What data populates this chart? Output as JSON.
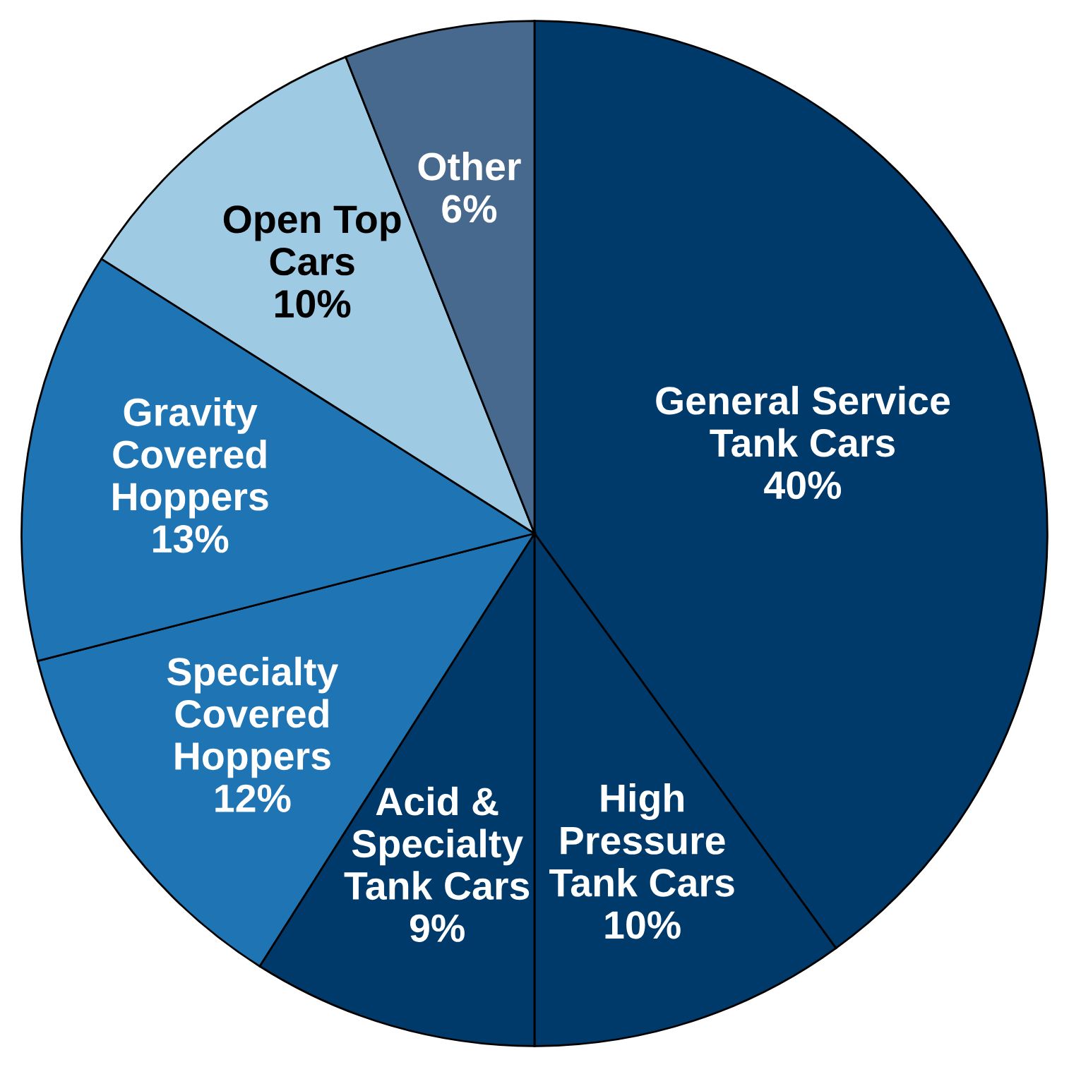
{
  "chart_data": {
    "type": "pie",
    "categories": [
      "General Service\nTank Cars",
      "High\nPressure\nTank Cars",
      "Acid &\nSpecialty\nTank Cars",
      "Specialty\nCovered\nHoppers",
      "Gravity\nCovered\nHoppers",
      "Open Top\nCars",
      "Other"
    ],
    "values": [
      40,
      10,
      9,
      12,
      13,
      10,
      6
    ],
    "colors": [
      "#003a6b",
      "#003a6b",
      "#003a6b",
      "#1f74b3",
      "#1f74b3",
      "#9ecbe3",
      "#46698d"
    ],
    "value_labels": [
      "40%",
      "10%",
      "9%",
      "12%",
      "13%",
      "10%",
      "6%"
    ]
  }
}
